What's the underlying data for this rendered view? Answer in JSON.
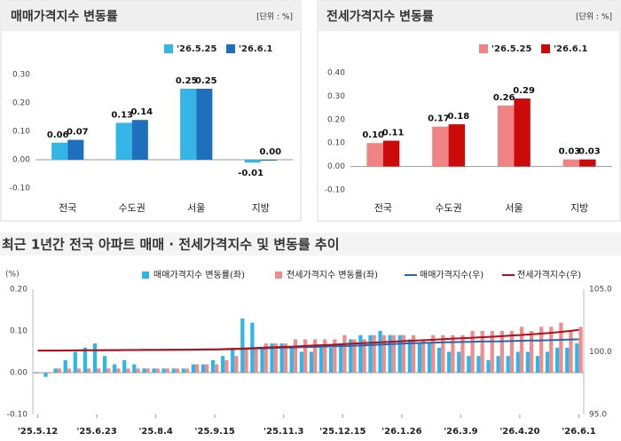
{
  "chart_data": [
    {
      "type": "bar",
      "title": "매매가격지수 변동률",
      "unit": "[단위 : %]",
      "categories": [
        "전국",
        "수도권",
        "서울",
        "지방"
      ],
      "series": [
        {
          "name": "'26.5.25",
          "color": "#35b4e6",
          "values": [
            0.06,
            0.13,
            0.25,
            -0.01
          ],
          "value_labels": [
            "0.06",
            "0.13",
            "0.25",
            "-0.01"
          ]
        },
        {
          "name": "'26.6.1",
          "color": "#1f6fbf",
          "values": [
            0.07,
            0.14,
            0.25,
            0.0
          ],
          "value_labels": [
            "0.07",
            "0.14",
            "0.25",
            "0.00"
          ]
        }
      ],
      "ylim": [
        -0.1,
        0.3
      ],
      "yticks": [
        {
          "value": -0.1,
          "label": "-0.10"
        },
        {
          "value": 0.0,
          "label": "0.00"
        },
        {
          "value": 0.1,
          "label": "0.10"
        },
        {
          "value": 0.2,
          "label": "0.20"
        },
        {
          "value": 0.3,
          "label": "0.30"
        }
      ]
    },
    {
      "type": "bar",
      "title": "전세가격지수 변동률",
      "unit": "[단위 : %]",
      "categories": [
        "전국",
        "수도권",
        "서울",
        "지방"
      ],
      "series": [
        {
          "name": "'26.5.25",
          "color": "#f08484",
          "values": [
            0.1,
            0.17,
            0.26,
            0.03
          ],
          "value_labels": [
            "0.10",
            "0.17",
            "0.26",
            "0.03"
          ]
        },
        {
          "name": "'26.6.1",
          "color": "#cc0a0a",
          "values": [
            0.11,
            0.18,
            0.29,
            0.03
          ],
          "value_labels": [
            "0.11",
            "0.18",
            "0.29",
            "0.03"
          ]
        }
      ],
      "ylim": [
        -0.1,
        0.4
      ],
      "yticks": [
        {
          "value": -0.1,
          "label": "-0.10"
        },
        {
          "value": 0.0,
          "label": "0.00"
        },
        {
          "value": 0.1,
          "label": "0.10"
        },
        {
          "value": 0.2,
          "label": "0.20"
        },
        {
          "value": 0.3,
          "label": "0.30"
        },
        {
          "value": 0.4,
          "label": "0.40"
        }
      ]
    },
    {
      "type": "combo",
      "title": "최근 1년간 전국 아파트 매매 · 전세가격지수 및 변동률 추이",
      "y_label": "(%)",
      "categories": [
        "'25.5.12",
        null,
        null,
        null,
        null,
        null,
        "'25.6.23",
        null,
        null,
        null,
        null,
        null,
        "'25.8.4",
        null,
        null,
        null,
        null,
        null,
        "'25.9.15",
        null,
        null,
        null,
        null,
        null,
        null,
        "'25.11.3",
        null,
        null,
        null,
        null,
        null,
        "'25.12.15",
        null,
        null,
        null,
        null,
        null,
        "'26.1.26",
        null,
        null,
        null,
        null,
        null,
        "'26.3.9",
        null,
        null,
        null,
        null,
        null,
        "'26.4.20",
        null,
        null,
        null,
        null,
        null,
        "'26.6.1"
      ],
      "series": [
        {
          "name": "매매가격지수 변동률(좌)",
          "kind": "bar",
          "color": "#2ab7ea",
          "values": [
            0.0,
            -0.01,
            0.01,
            0.03,
            0.05,
            0.06,
            0.07,
            0.04,
            0.02,
            0.03,
            0.02,
            0.01,
            0.01,
            0.01,
            0.01,
            0.01,
            0.02,
            0.02,
            0.03,
            0.04,
            0.06,
            0.13,
            0.12,
            0.06,
            0.07,
            0.07,
            0.06,
            0.05,
            0.05,
            0.06,
            0.06,
            0.07,
            0.08,
            0.09,
            0.09,
            0.1,
            0.09,
            0.09,
            0.08,
            0.07,
            0.07,
            0.06,
            0.05,
            0.05,
            0.04,
            0.04,
            0.03,
            0.04,
            0.04,
            0.05,
            0.05,
            0.04,
            0.05,
            0.06,
            0.06,
            0.07
          ]
        },
        {
          "name": "전세가격지수 변동률(좌)",
          "kind": "bar",
          "color": "#f28b8b",
          "values": [
            0.0,
            0.0,
            0.01,
            0.01,
            0.01,
            0.01,
            0.01,
            0.01,
            0.01,
            0.01,
            0.01,
            0.01,
            0.01,
            0.01,
            0.01,
            0.01,
            0.02,
            0.02,
            0.02,
            0.03,
            0.04,
            0.06,
            0.06,
            0.07,
            0.07,
            0.07,
            0.08,
            0.08,
            0.08,
            0.08,
            0.08,
            0.09,
            0.08,
            0.08,
            0.09,
            0.09,
            0.09,
            0.09,
            0.09,
            0.08,
            0.09,
            0.09,
            0.09,
            0.09,
            0.1,
            0.1,
            0.1,
            0.1,
            0.1,
            0.11,
            0.1,
            0.11,
            0.11,
            0.12,
            0.1,
            0.11
          ]
        },
        {
          "name": "매매가격지수(우)",
          "kind": "line",
          "axis": "y2",
          "color": "#2467b5",
          "values": [
            100.1,
            100.1,
            100.1,
            100.1,
            100.11,
            100.12,
            100.13,
            100.14,
            100.14,
            100.15,
            100.15,
            100.16,
            100.16,
            100.16,
            100.17,
            100.17,
            100.17,
            100.18,
            100.18,
            100.19,
            100.21,
            100.23,
            100.26,
            100.28,
            100.31,
            100.33,
            100.35,
            100.37,
            100.39,
            100.41,
            100.44,
            100.46,
            100.49,
            100.52,
            100.55,
            100.59,
            100.62,
            100.65,
            100.68,
            100.71,
            100.73,
            100.75,
            100.77,
            100.79,
            100.8,
            100.82,
            100.83,
            100.84,
            100.86,
            100.88,
            100.9,
            100.91,
            100.93,
            100.95,
            100.98,
            101.0
          ]
        },
        {
          "name": "전세가격지수(우)",
          "kind": "line",
          "axis": "y2",
          "color": "#b0101a",
          "values": [
            100.1,
            100.1,
            100.1,
            100.11,
            100.11,
            100.12,
            100.12,
            100.13,
            100.13,
            100.14,
            100.14,
            100.15,
            100.15,
            100.16,
            100.16,
            100.17,
            100.18,
            100.19,
            100.2,
            100.22,
            100.24,
            100.27,
            100.3,
            100.33,
            100.36,
            100.39,
            100.42,
            100.46,
            100.5,
            100.53,
            100.57,
            100.61,
            100.65,
            100.69,
            100.73,
            100.77,
            100.81,
            100.85,
            100.89,
            100.92,
            100.96,
            101.0,
            101.04,
            101.08,
            101.12,
            101.16,
            101.2,
            101.24,
            101.29,
            101.34,
            101.39,
            101.45,
            101.51,
            101.58,
            101.66,
            101.75
          ]
        }
      ],
      "ylim": [
        -0.1,
        0.2
      ],
      "yticks": [
        {
          "value": -0.1,
          "label": "-0.10"
        },
        {
          "value": 0.0,
          "label": "0.00"
        },
        {
          "value": 0.1,
          "label": "0.10"
        },
        {
          "value": 0.2,
          "label": "0.20"
        }
      ],
      "y2lim": [
        95.0,
        105.0
      ],
      "y2ticks": [
        {
          "value": 95.0,
          "label": "95.0"
        },
        {
          "value": 100.0,
          "label": "100.0"
        },
        {
          "value": 105.0,
          "label": "105.0"
        }
      ]
    }
  ]
}
